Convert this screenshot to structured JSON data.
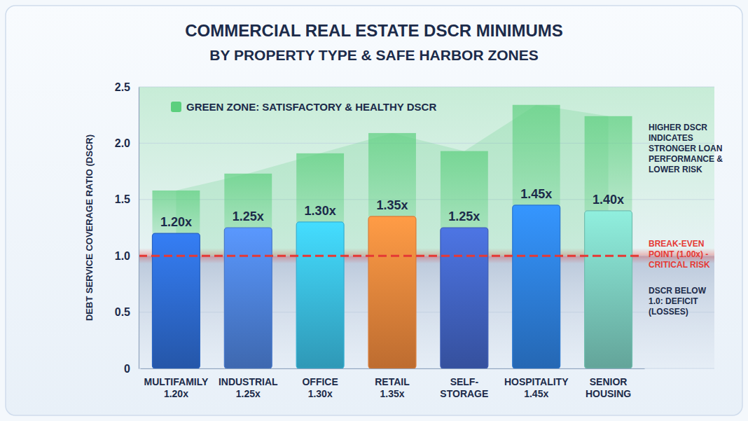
{
  "chart_data": {
    "type": "bar",
    "title": "COMMERCIAL REAL ESTATE DSCR MINIMUMS",
    "subtitle": "BY PROPERTY TYPE & SAFE HARBOR ZONES",
    "y_label": "DEBT SERVICE COVERAGE RATIO (DSCR)",
    "categories": [
      "MULTIFAMILY 1.20x",
      "INDUSTRIAL 1.25x",
      "OFFICE 1.30x",
      "RETAIL 1.35x",
      "SELF-STORAGE",
      "HOSPITALITY 1.45x",
      "SENIOR HOUSING"
    ],
    "values": [
      1.2,
      1.25,
      1.3,
      1.35,
      1.25,
      1.45,
      1.4
    ],
    "value_labels": [
      "1.20x",
      "1.25x",
      "1.30x",
      "1.35x",
      "1.25x",
      "1.45x",
      "1.40x"
    ],
    "colors": [
      "#2f6fd8",
      "#4f86e0",
      "#3cc3ea",
      "#f28a3e",
      "#4467c9",
      "#2f84e6",
      "#7fd3c4"
    ],
    "data_labels": true,
    "ylim": [
      0,
      2.5
    ],
    "yticks": [
      0,
      0.5,
      {
        "value": 1,
        "label": "1.0"
      },
      1.5,
      {
        "value": 2,
        "label": "2.0"
      },
      2.5
    ],
    "grid": true,
    "green_zone": {
      "label": "GREEN ZONE: SATISFACTORY & HEALTHY DSCR",
      "values": [
        1.58,
        1.73,
        1.91,
        2.09,
        1.93,
        2.34,
        2.24
      ],
      "color": "#5ccf7e"
    },
    "break_even": {
      "value": 1,
      "label": "BREAK-EVEN POINT (1.00x) - CRITICAL RISK",
      "color": "#e53935"
    },
    "annotations": [
      "HIGHER DSCR INDICATES STRONGER LOAN PERFORMANCE & LOWER RISK",
      "DSCR BELOW 1.0: DEFICIT (LOSSES)"
    ]
  }
}
